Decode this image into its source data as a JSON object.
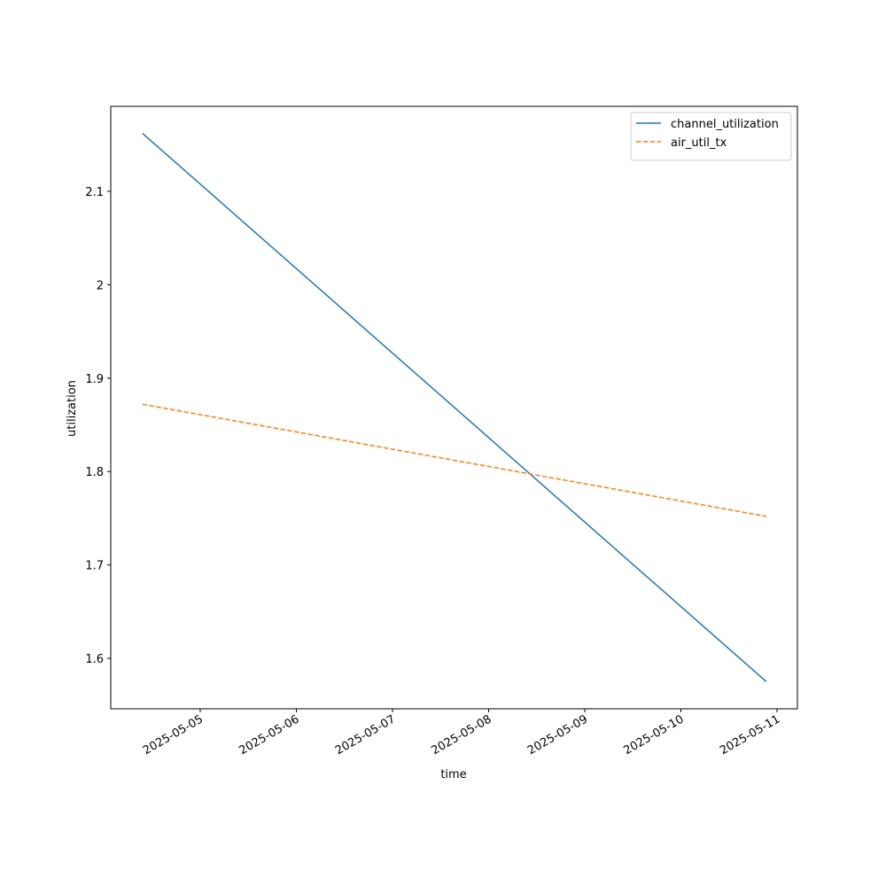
{
  "chart_data": {
    "type": "line",
    "x_label": "time",
    "y_label": "utilization",
    "x": [
      "2025-05-04T09:36",
      "2025-05-10T21:20"
    ],
    "series": [
      {
        "name": "channel_utilization",
        "color": "#1f77b4",
        "line_style": "solid",
        "values": [
          2.162,
          1.575
        ]
      },
      {
        "name": "air_util_tx",
        "color": "#ff7f0e",
        "line_style": "dashed",
        "values": [
          1.872,
          1.752
        ]
      }
    ],
    "xlim": [
      "2025-05-04T01:40",
      "2025-05-11T05:05"
    ],
    "xticks": [
      "2025-05-05",
      "2025-05-06",
      "2025-05-07",
      "2025-05-08",
      "2025-05-09",
      "2025-05-10",
      "2025-05-11"
    ],
    "ylim": [
      1.546,
      2.191
    ],
    "yticks": [
      1.6,
      1.7,
      1.8,
      1.9,
      2.0,
      2.1
    ],
    "grid": false,
    "legend": "upper right"
  }
}
